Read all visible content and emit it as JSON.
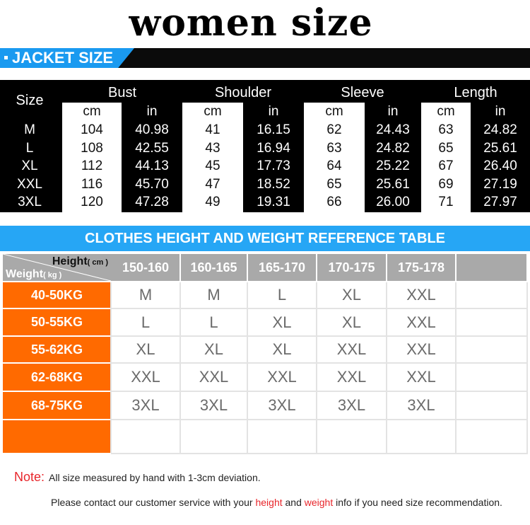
{
  "title": "women size",
  "banner": {
    "label": "JACKET SIZE"
  },
  "jacket_table": {
    "size_label": "Size",
    "groups": [
      "Bust",
      "Shoulder",
      "Sleeve",
      "Length"
    ],
    "units": [
      "cm",
      "in",
      "cm",
      "in",
      "cm",
      "in",
      "cm",
      "in"
    ],
    "rows": [
      {
        "size": "M",
        "values": [
          "104",
          "40.98",
          "41",
          "16.15",
          "62",
          "24.43",
          "63",
          "24.82"
        ]
      },
      {
        "size": "L",
        "values": [
          "108",
          "42.55",
          "43",
          "16.94",
          "63",
          "24.82",
          "65",
          "25.61"
        ]
      },
      {
        "size": "XL",
        "values": [
          "112",
          "44.13",
          "45",
          "17.73",
          "64",
          "25.22",
          "67",
          "26.40"
        ]
      },
      {
        "size": "XXL",
        "values": [
          "116",
          "45.70",
          "47",
          "18.52",
          "65",
          "25.61",
          "69",
          "27.19"
        ]
      },
      {
        "size": "3XL",
        "values": [
          "120",
          "47.28",
          "49",
          "19.31",
          "66",
          "26.00",
          "71",
          "27.97"
        ]
      }
    ]
  },
  "reference": {
    "title": "CLOTHES HEIGHT AND WEIGHT REFERENCE TABLE",
    "corner_height": "Height",
    "corner_height_unit": "( cm )",
    "corner_weight": "Weight",
    "corner_weight_unit": "( kg )",
    "heights": [
      "150-160",
      "160-165",
      "165-170",
      "170-175",
      "175-178"
    ],
    "rows": [
      {
        "weight": "40-50KG",
        "sizes": [
          "M",
          "M",
          "L",
          "XL",
          "XXL"
        ]
      },
      {
        "weight": "50-55KG",
        "sizes": [
          "L",
          "L",
          "XL",
          "XL",
          "XXL"
        ]
      },
      {
        "weight": "55-62KG",
        "sizes": [
          "XL",
          "XL",
          "XL",
          "XXL",
          "XXL"
        ]
      },
      {
        "weight": "62-68KG",
        "sizes": [
          "XXL",
          "XXL",
          "XXL",
          "XXL",
          "XXL"
        ]
      },
      {
        "weight": "68-75KG",
        "sizes": [
          "3XL",
          "3XL",
          "3XL",
          "3XL",
          "3XL"
        ]
      }
    ]
  },
  "note": {
    "label": "Note:",
    "line1": "All size measured by hand with 1-3cm deviation.",
    "line2_a": "Please contact our customer service with your",
    "line2_height": "height",
    "line2_b": "and",
    "line2_weight": "weight",
    "line2_c": "info if you need size recommendation."
  }
}
